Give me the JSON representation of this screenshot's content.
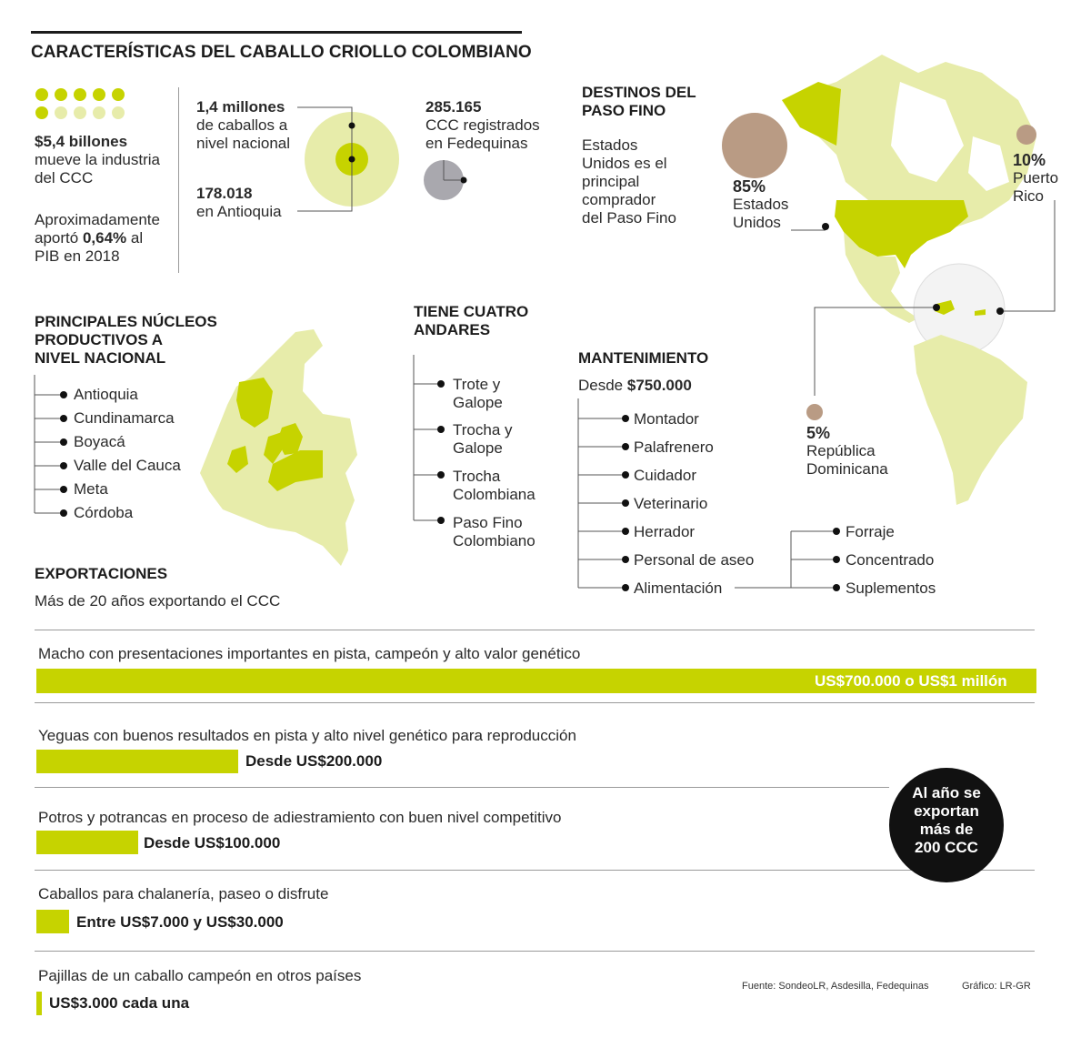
{
  "title": "CARACTERÍSTICAS DEL CABALLO CRIOLLO COLOMBIANO",
  "industry": {
    "amount": "$5,4 billones",
    "line1": "mueve la industria",
    "line2": "del CCC",
    "pib_1": "Aproximadamente",
    "pib_2a": "aportó ",
    "pib_2b": "0,64%",
    "pib_2c": " al",
    "pib_3": "PIB en 2018"
  },
  "horses": {
    "national_value": "1,4 millones",
    "national_l1": "de caballos a",
    "national_l2": "nivel nacional",
    "antioquia_value": "178.018",
    "antioquia_label": "en Antioquia"
  },
  "registered": {
    "value": "285.165",
    "l1": "CCC registrados",
    "l2": "en Fedequinas"
  },
  "destinations": {
    "title_l1": "DESTINOS DEL",
    "title_l2": "PASO FINO",
    "desc": [
      "Estados",
      "Unidos es el",
      "principal",
      "comprador",
      "del Paso Fino"
    ],
    "usa_pct": "85%",
    "usa_l1": "Estados",
    "usa_l2": "Unidos",
    "pr_pct": "10%",
    "pr_l1": "Puerto",
    "pr_l2": "Rico",
    "rd_pct": "5%",
    "rd_l1": "República",
    "rd_l2": "Dominicana"
  },
  "nucleos": {
    "title": [
      "PRINCIPALES NÚCLEOS",
      "PRODUCTIVOS A",
      "NIVEL NACIONAL"
    ],
    "items": [
      "Antioquia",
      "Cundinamarca",
      "Boyacá",
      "Valle del Cauca",
      "Meta",
      "Córdoba"
    ]
  },
  "andares": {
    "title": [
      "TIENE CUATRO",
      "ANDARES"
    ],
    "items": [
      [
        "Trote y",
        "Galope"
      ],
      [
        "Trocha y",
        "Galope"
      ],
      [
        "Trocha",
        "Colombiana"
      ],
      [
        "Paso Fino",
        "Colombiano"
      ]
    ]
  },
  "mantenimiento": {
    "title": "MANTENIMIENTO",
    "desde": "Desde ",
    "price": "$750.000",
    "items": [
      "Montador",
      "Palafrenero",
      "Cuidador",
      "Veterinario",
      "Herrador",
      "Personal de aseo",
      "Alimentación"
    ],
    "sub_items": [
      "Forraje",
      "Concentrado",
      "Suplementos"
    ]
  },
  "exports": {
    "title": "EXPORTACIONES",
    "subtitle": "Más de 20 años exportando el CCC",
    "rows": [
      {
        "label": "Macho con presentaciones importantes en pista, campeón y alto valor genético",
        "value": "US$700.000 o US$1 millón"
      },
      {
        "label": "Yeguas con buenos resultados en pista y alto nivel genético para reproducción",
        "value": "Desde US$200.000"
      },
      {
        "label": "Potros y potrancas en proceso de adiestramiento con buen nivel competitivo",
        "value": "Desde US$100.000"
      },
      {
        "label": "Caballos para chalanería, paseo o disfrute",
        "value": "Entre US$7.000 y US$30.000"
      },
      {
        "label": "Pajillas de un caballo campeón en otros países",
        "value": "US$3.000 cada una"
      }
    ],
    "badge": [
      "Al año se",
      "exportan",
      "más de",
      "200 CCC"
    ]
  },
  "footer": {
    "source": "Fuente: SondeoLR, Asdesilla, Fedequinas",
    "credit": "Gráfico: LR-GR"
  },
  "colors": {
    "lime": "#c6d300",
    "pale": "#e7ecaa",
    "tan": "#b99b84",
    "gray": "#a9a8ae"
  }
}
